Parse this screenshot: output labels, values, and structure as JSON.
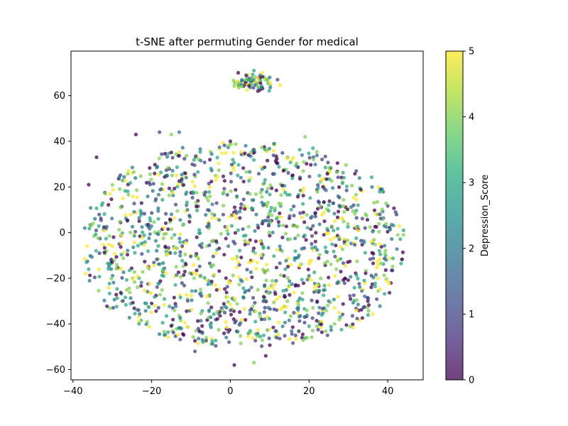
{
  "chart_data": {
    "type": "scatter",
    "title": "t-SNE after permuting Gender for medical",
    "xlabel": "",
    "ylabel": "",
    "xlim": [
      -40.5,
      49
    ],
    "ylim": [
      -64.5,
      79.5
    ],
    "x_ticks": [
      -40,
      -20,
      0,
      20,
      40
    ],
    "y_ticks": [
      -60,
      -40,
      -20,
      0,
      20,
      40,
      60
    ],
    "colorbar": {
      "label": "Depression_Score",
      "range": [
        0,
        5
      ],
      "ticks": [
        0,
        1,
        2,
        3,
        4,
        5
      ],
      "colormap": "viridis"
    },
    "grid": false,
    "marker_alpha": 0.75,
    "clusters": [
      {
        "name": "upper cluster",
        "center": [
          6,
          66
        ],
        "spread": [
          4,
          3.5
        ],
        "count": 70
      },
      {
        "name": "main cloud",
        "x_range": [
          -37,
          44
        ],
        "y_range": [
          -58,
          45
        ],
        "count": 1500
      }
    ],
    "points": [
      [
        2,
        70,
        0
      ],
      [
        4,
        69,
        1
      ],
      [
        6,
        71,
        3
      ],
      [
        8,
        70,
        5
      ],
      [
        10,
        68,
        2
      ],
      [
        7,
        62,
        0
      ],
      [
        3,
        64,
        4
      ],
      [
        12,
        67,
        1
      ],
      [
        -36,
        21,
        0
      ],
      [
        -37,
        2,
        2
      ],
      [
        -34,
        33,
        0
      ],
      [
        -36,
        -16,
        3
      ],
      [
        44,
        1,
        3
      ],
      [
        44,
        -1,
        4
      ],
      [
        42,
        9,
        1
      ],
      [
        -24,
        43,
        0
      ],
      [
        -18,
        44,
        1
      ],
      [
        -13,
        44,
        2
      ],
      [
        -15,
        43,
        4
      ],
      [
        0,
        40,
        0
      ],
      [
        19,
        42,
        4
      ],
      [
        21,
        37,
        3
      ],
      [
        -9,
        -52,
        1
      ],
      [
        1,
        -58,
        0
      ],
      [
        6,
        -57,
        4
      ],
      [
        9,
        -54,
        0
      ],
      [
        22,
        -41,
        4
      ],
      [
        20,
        -41,
        3
      ],
      [
        25,
        -30,
        2
      ],
      [
        34,
        -21,
        3
      ],
      [
        22,
        -23,
        5
      ],
      [
        32,
        27,
        1
      ],
      [
        38,
        8,
        1
      ],
      [
        38,
        -5,
        5
      ],
      [
        36,
        20,
        2
      ]
    ]
  }
}
